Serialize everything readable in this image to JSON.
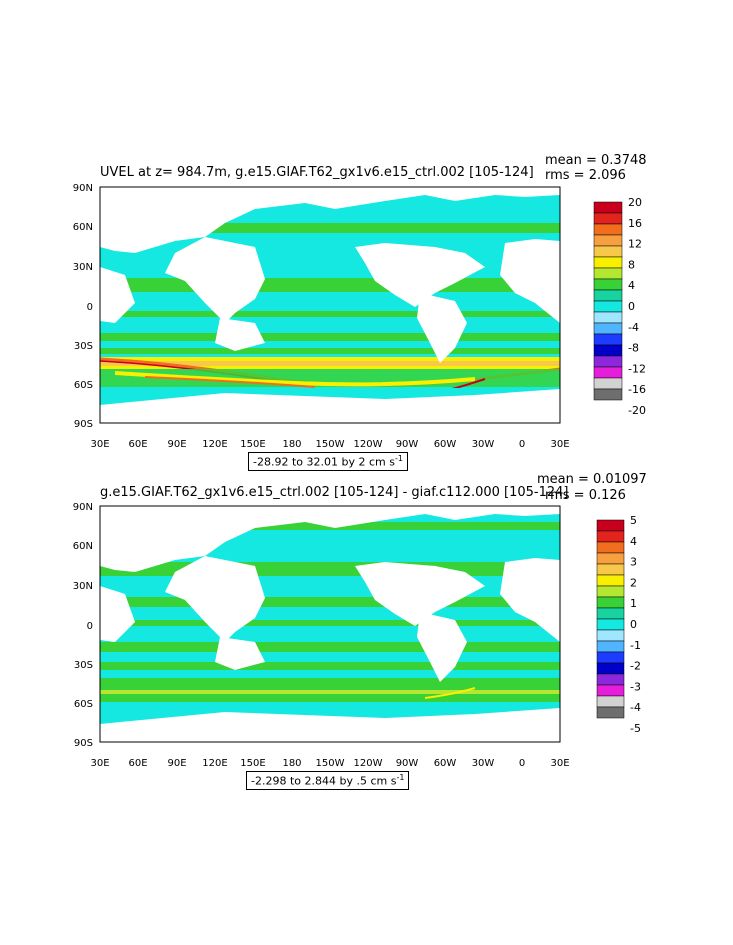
{
  "panel1": {
    "title": "UVEL at z= 984.7m, g.e15.GIAF.T62_gx1v6.e15_ctrl.002 [105-124]",
    "mean": "mean = 0.3748",
    "rms": "rms = 2.096",
    "range_label": "-28.92 to 32.01 by 2 cm s",
    "range_sup": "-1",
    "colorbar_labels": [
      "20",
      "16",
      "12",
      "8",
      "4",
      "0",
      "-4",
      "-8",
      "-12",
      "-16",
      "-20"
    ],
    "colors": [
      "#c8001e",
      "#e2231e",
      "#f06e1e",
      "#f8a040",
      "#f8c84a",
      "#f8f000",
      "#b4e632",
      "#38d238",
      "#18d2a0",
      "#14e8e0",
      "#a0e6ff",
      "#50b4ff",
      "#1e3cff",
      "#0000c8",
      "#8c28dc",
      "#e61edc",
      "#d2d2d2",
      "#6e6e6e"
    ]
  },
  "panel2": {
    "title": "g.e15.GIAF.T62_gx1v6.e15_ctrl.002 [105-124] - giaf.c112.000 [105-124]",
    "mean": "mean = 0.01097",
    "rms": "rms = 0.126",
    "range_label": "-2.298 to 2.844 by .5 cm s",
    "range_sup": "-1",
    "colorbar_labels": [
      "5",
      "4",
      "3",
      "2",
      "1",
      "0",
      "-1",
      "-2",
      "-3",
      "-4",
      "-5"
    ],
    "colors": [
      "#c8001e",
      "#e2231e",
      "#f06e1e",
      "#f8a040",
      "#f8c84a",
      "#f8f000",
      "#b4e632",
      "#38d238",
      "#18d2a0",
      "#14e8e0",
      "#a0e6ff",
      "#50b4ff",
      "#1e3cff",
      "#0000c8",
      "#8c28dc",
      "#e61edc",
      "#d2d2d2",
      "#6e6e6e"
    ]
  },
  "axes": {
    "lat_labels": [
      "90N",
      "60N",
      "30N",
      "0",
      "30S",
      "60S",
      "90S"
    ],
    "lon_labels": [
      "30E",
      "60E",
      "90E",
      "120E",
      "150E",
      "180",
      "150W",
      "120W",
      "90W",
      "60W",
      "30W",
      "0",
      "30E"
    ]
  }
}
